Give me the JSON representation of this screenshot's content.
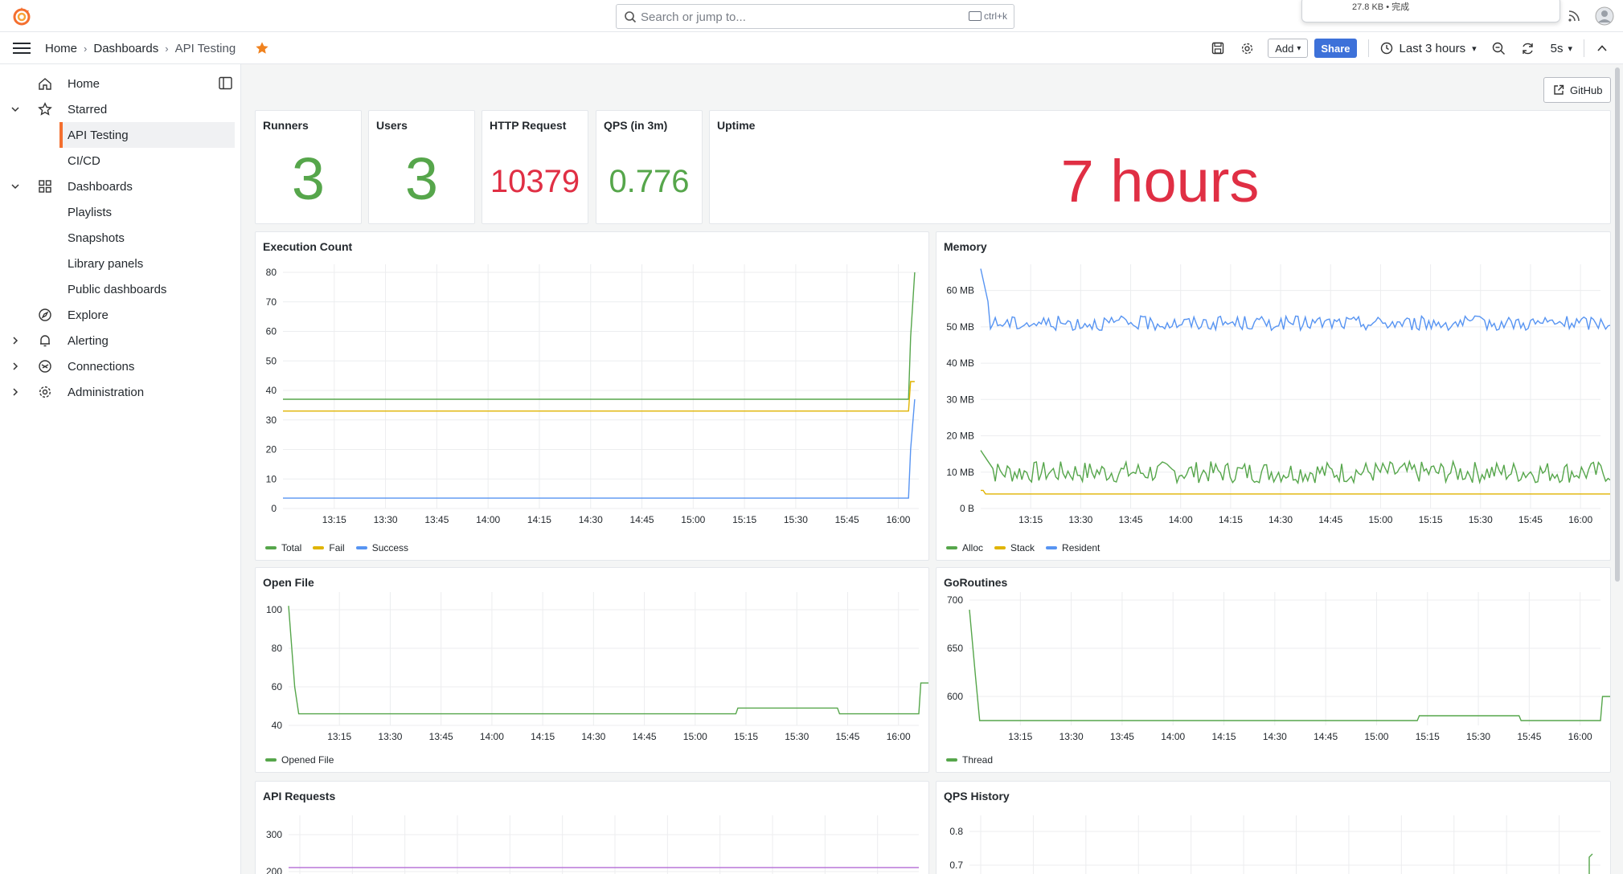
{
  "topbar": {
    "search_placeholder": "Search or jump to...",
    "shortcut": "ctrl+k",
    "download_text": "27.8 KB • 完成"
  },
  "breadcrumb": {
    "home": "Home",
    "dashboards": "Dashboards",
    "current": "API Testing"
  },
  "toolbar": {
    "add_label": "Add",
    "share_label": "Share",
    "time_range": "Last 3 hours",
    "refresh_interval": "5s"
  },
  "sidebar": {
    "items": [
      {
        "label": "Home",
        "icon": "home-icon",
        "chevron": false,
        "indent": false,
        "active": false
      },
      {
        "label": "Starred",
        "icon": "star-outline-icon",
        "chevron": "down",
        "indent": false,
        "active": false
      },
      {
        "label": "API Testing",
        "icon": "",
        "chevron": false,
        "indent": true,
        "active": true
      },
      {
        "label": "CI/CD",
        "icon": "",
        "chevron": false,
        "indent": true,
        "active": false
      },
      {
        "label": "Dashboards",
        "icon": "apps-icon",
        "chevron": "down",
        "indent": false,
        "active": false
      },
      {
        "label": "Playlists",
        "icon": "",
        "chevron": false,
        "indent": true,
        "active": false
      },
      {
        "label": "Snapshots",
        "icon": "",
        "chevron": false,
        "indent": true,
        "active": false
      },
      {
        "label": "Library panels",
        "icon": "",
        "chevron": false,
        "indent": true,
        "active": false
      },
      {
        "label": "Public dashboards",
        "icon": "",
        "chevron": false,
        "indent": true,
        "active": false
      },
      {
        "label": "Explore",
        "icon": "compass-icon",
        "chevron": false,
        "indent": false,
        "active": false
      },
      {
        "label": "Alerting",
        "icon": "bell-icon",
        "chevron": "right",
        "indent": false,
        "active": false
      },
      {
        "label": "Connections",
        "icon": "link-icon",
        "chevron": "right",
        "indent": false,
        "active": false
      },
      {
        "label": "Administration",
        "icon": "cog-icon",
        "chevron": "right",
        "indent": false,
        "active": false
      }
    ]
  },
  "github_label": "GitHub",
  "stats": [
    {
      "title": "Runners",
      "value": "3",
      "color": "#56a64b"
    },
    {
      "title": "Users",
      "value": "3",
      "color": "#56a64b"
    },
    {
      "title": "HTTP Request",
      "value": "10379",
      "color": "#e02f44"
    },
    {
      "title": "QPS (in 3m)",
      "value": "0.776",
      "color": "#56a64b"
    },
    {
      "title": "Uptime",
      "value": "7 hours",
      "color": "#e02f44"
    }
  ],
  "colors": {
    "green": "#56a64b",
    "yellow": "#e0b400",
    "blue": "#5794f2",
    "purple": "#b877d9"
  },
  "chart_data": [
    {
      "title": "Execution Count",
      "type": "line",
      "xticks": [
        "13:15",
        "13:30",
        "13:45",
        "14:00",
        "14:15",
        "14:30",
        "14:45",
        "15:00",
        "15:15",
        "15:30",
        "15:45",
        "16:00"
      ],
      "yticks": [
        "0",
        "10",
        "20",
        "30",
        "40",
        "50",
        "60",
        "70",
        "80"
      ],
      "ylim": [
        0,
        80
      ],
      "series": [
        {
          "name": "Total",
          "color": "#56a64b",
          "points": [
            [
              13.0,
              37
            ],
            [
              16.05,
              37
            ],
            [
              16.06,
              58
            ],
            [
              16.08,
              80
            ]
          ]
        },
        {
          "name": "Fail",
          "color": "#e0b400",
          "points": [
            [
              13.0,
              33
            ],
            [
              16.05,
              33
            ],
            [
              16.06,
              43
            ],
            [
              16.08,
              43
            ]
          ]
        },
        {
          "name": "Success",
          "color": "#5794f2",
          "points": [
            [
              13.0,
              3.5
            ],
            [
              16.05,
              3.5
            ],
            [
              16.06,
              20
            ],
            [
              16.08,
              37
            ]
          ]
        }
      ]
    },
    {
      "title": "Memory",
      "type": "line",
      "xticks": [
        "13:15",
        "13:30",
        "13:45",
        "14:00",
        "14:15",
        "14:30",
        "14:45",
        "15:00",
        "15:15",
        "15:30",
        "15:45",
        "16:00"
      ],
      "yticks": [
        "0 B",
        "10 MB",
        "20 MB",
        "30 MB",
        "40 MB",
        "50 MB",
        "60 MB"
      ],
      "ylim": [
        0,
        65
      ],
      "series": [
        {
          "name": "Alloc",
          "color": "#56a64b",
          "base": 10,
          "amp": 3
        },
        {
          "name": "Stack",
          "color": "#e0b400",
          "base": 4,
          "amp": 0
        },
        {
          "name": "Resident",
          "color": "#5794f2",
          "base": 51,
          "amp": 2
        }
      ]
    },
    {
      "title": "Open File",
      "type": "line",
      "xticks": [
        "13:15",
        "13:30",
        "13:45",
        "14:00",
        "14:15",
        "14:30",
        "14:45",
        "15:00",
        "15:15",
        "15:30",
        "15:45",
        "16:00"
      ],
      "yticks": [
        "40",
        "60",
        "80",
        "100"
      ],
      "ylim": [
        40,
        105
      ],
      "series": [
        {
          "name": "Opened File",
          "color": "#56a64b",
          "points": [
            [
              13.0,
              102
            ],
            [
              13.03,
              60
            ],
            [
              13.05,
              46
            ],
            [
              15.2,
              46
            ],
            [
              15.21,
              49
            ],
            [
              15.7,
              49
            ],
            [
              15.71,
              46
            ],
            [
              16.1,
              46
            ],
            [
              16.11,
              62
            ],
            [
              16.15,
              62
            ]
          ]
        }
      ]
    },
    {
      "title": "GoRoutines",
      "type": "line",
      "xticks": [
        "13:15",
        "13:30",
        "13:45",
        "14:00",
        "14:15",
        "14:30",
        "14:45",
        "15:00",
        "15:15",
        "15:30",
        "15:45",
        "16:00"
      ],
      "yticks": [
        "600",
        "650",
        "700"
      ],
      "ylim": [
        570,
        700
      ],
      "series": [
        {
          "name": "Thread",
          "color": "#56a64b",
          "points": [
            [
              13.0,
              690
            ],
            [
              13.03,
              620
            ],
            [
              13.05,
              575
            ],
            [
              15.2,
              575
            ],
            [
              15.21,
              580
            ],
            [
              15.7,
              580
            ],
            [
              15.71,
              575
            ],
            [
              16.1,
              575
            ],
            [
              16.11,
              600
            ],
            [
              16.15,
              600
            ]
          ]
        }
      ]
    },
    {
      "title": "API Requests",
      "type": "line",
      "yticks": [
        "200",
        "300"
      ],
      "series": [
        {
          "name": "",
          "color": "#b877d9"
        }
      ]
    },
    {
      "title": "QPS History",
      "type": "line",
      "yticks": [
        "0.7",
        "0.8"
      ],
      "series": [
        {
          "name": "",
          "color": "#56a64b"
        }
      ]
    }
  ]
}
